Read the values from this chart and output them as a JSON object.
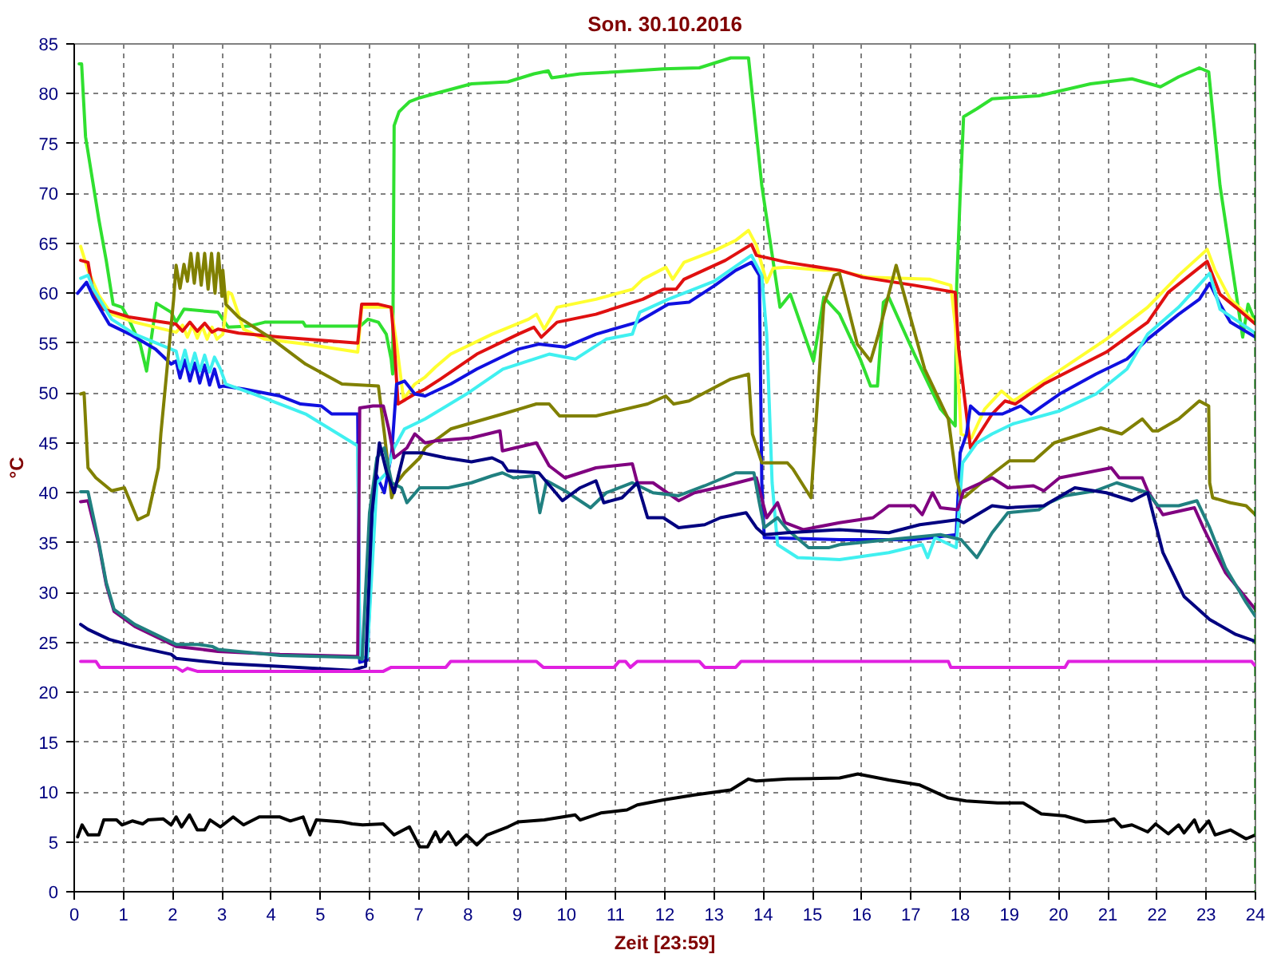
{
  "chart_data": {
    "type": "line",
    "title": "Son. 30.10.2016",
    "xlabel": "Zeit [23:59]",
    "ylabel": "°C",
    "xlim": [
      0,
      24
    ],
    "ylim": [
      0,
      85
    ],
    "xticks": [
      0,
      1,
      2,
      3,
      4,
      5,
      6,
      7,
      8,
      9,
      10,
      11,
      12,
      13,
      14,
      15,
      16,
      17,
      18,
      19,
      20,
      21,
      22,
      23,
      24
    ],
    "yticks": [
      0,
      5,
      10,
      15,
      20,
      25,
      30,
      35,
      40,
      45,
      50,
      55,
      60,
      65,
      70,
      75,
      80,
      85
    ],
    "grid": true,
    "ref_lines": [
      {
        "axis": "x",
        "value": 24,
        "color": "#006400",
        "line_style": "dashed"
      }
    ],
    "series": [
      {
        "color": "#30e030",
        "x": [
          0.1,
          0.15,
          0.23,
          0.5,
          0.65,
          0.79,
          0.97,
          1.1,
          1.34,
          1.47,
          1.67,
          1.97,
          2.07,
          2.23,
          2.92,
          3.13,
          3.55,
          3.87,
          4.65,
          4.7,
          5.81,
          5.97,
          6.18,
          6.34,
          6.44,
          6.47,
          6.5,
          6.6,
          6.81,
          7.02,
          7.39,
          8.07,
          8.81,
          9.34,
          9.63,
          9.7,
          10.28,
          11.02,
          11.97,
          12.7,
          13.34,
          13.7,
          13.97,
          14.34,
          14.55,
          15.02,
          15.23,
          15.55,
          15.97,
          16.18,
          16.32,
          16.44,
          16.55,
          17.07,
          17.6,
          17.9,
          17.93,
          18.0,
          18.07,
          18.34,
          18.65,
          19.6,
          20.65,
          21.49,
          22.07,
          22.44,
          22.86,
          23.05,
          23.28,
          23.74,
          23.85,
          24
        ],
        "values": [
          83,
          83,
          75.7,
          67.4,
          63.3,
          58.9,
          58.6,
          57.5,
          54.9,
          52.2,
          59,
          58.1,
          57.1,
          58.4,
          58.1,
          56.6,
          56.7,
          57.1,
          57.1,
          56.7,
          56.7,
          57.4,
          57.1,
          55.9,
          53.4,
          51.9,
          76.8,
          78.2,
          79.2,
          79.6,
          80.1,
          81,
          81.2,
          82,
          82.3,
          81.6,
          82,
          82.2,
          82.5,
          82.6,
          83.6,
          83.6,
          70.8,
          58.6,
          59.9,
          53.2,
          59.6,
          57.9,
          53.4,
          50.7,
          50.7,
          59.1,
          59.6,
          53.9,
          48.4,
          46.7,
          60.8,
          69.8,
          77.7,
          78.5,
          79.5,
          79.8,
          81,
          81.5,
          80.7,
          81.7,
          82.6,
          82.2,
          70.8,
          55.6,
          58.9,
          57.1
        ]
      },
      {
        "color": "#ffff30",
        "x": [
          0.13,
          0.28,
          0.5,
          0.76,
          1.23,
          2.07,
          2.2,
          2.3,
          2.4,
          2.5,
          2.6,
          2.7,
          2.8,
          2.9,
          3.02,
          3.13,
          3.2,
          3.44,
          3.87,
          4.7,
          5.76,
          5.84,
          6.44,
          6.55,
          6.69,
          6.92,
          7.13,
          7.34,
          7.65,
          8.49,
          9.23,
          9.39,
          9.55,
          9.81,
          10.6,
          11.34,
          11.55,
          12.02,
          12.16,
          12.39,
          13.02,
          13.44,
          13.7,
          13.86,
          14.07,
          14.2,
          14.49,
          15.23,
          15.5,
          16.13,
          17.39,
          17.81,
          17.9,
          18.02,
          18.23,
          18.5,
          18.84,
          19.08,
          19.91,
          20.97,
          21.81,
          22.44,
          23.02,
          23.18,
          23.49,
          24
        ],
        "values": [
          64.7,
          62.3,
          59.8,
          57.9,
          57.1,
          56.1,
          56.8,
          55.6,
          56.8,
          55.5,
          56.7,
          55.4,
          56.6,
          55.4,
          55.9,
          60.1,
          59.9,
          56.4,
          55.4,
          54.9,
          54.1,
          58.6,
          58.6,
          54.9,
          49.4,
          50.9,
          51.6,
          52.6,
          53.9,
          55.9,
          57.4,
          57.9,
          56.4,
          58.6,
          59.4,
          60.4,
          61.4,
          62.6,
          61.4,
          63.1,
          64.3,
          65.3,
          66.3,
          64.8,
          61.1,
          62.5,
          62.6,
          62.3,
          62.3,
          61.6,
          61.4,
          60.8,
          56.9,
          45.9,
          45.5,
          48.4,
          50.2,
          49.2,
          51.9,
          55.4,
          58.6,
          61.8,
          64.4,
          62.3,
          59.4,
          57.1
        ]
      },
      {
        "color": "#e01010",
        "x": [
          0.13,
          0.28,
          0.39,
          0.6,
          1.13,
          2.07,
          2.2,
          2.35,
          2.5,
          2.65,
          2.8,
          2.92,
          3.34,
          4.18,
          5.76,
          5.84,
          6.18,
          6.44,
          6.5,
          6.58,
          6.92,
          7.13,
          7.44,
          8.18,
          9.02,
          9.34,
          9.49,
          9.81,
          10.6,
          11.55,
          11.97,
          12.23,
          12.39,
          13.23,
          13.76,
          13.86,
          14.49,
          15.55,
          16.02,
          17.07,
          17.9,
          17.97,
          18.21,
          18.65,
          18.91,
          19.12,
          19.7,
          20.97,
          21.81,
          22.23,
          23.02,
          23.28,
          23.6,
          24
        ],
        "values": [
          63.3,
          63.1,
          59.9,
          58.4,
          57.6,
          56.9,
          56.2,
          57.1,
          56.2,
          57,
          56.1,
          56.4,
          56,
          55.6,
          55,
          58.9,
          58.9,
          58.6,
          55.1,
          48.9,
          49.9,
          50.4,
          51.4,
          53.9,
          55.9,
          56.6,
          55.6,
          57.1,
          57.9,
          59.4,
          60.4,
          60.4,
          61.4,
          63.3,
          64.9,
          63.8,
          63.1,
          62.3,
          61.6,
          60.8,
          60.1,
          54.4,
          44.5,
          47.9,
          49.2,
          48.9,
          50.9,
          54.1,
          57.1,
          60.1,
          63.2,
          59.9,
          58.6,
          56.9
        ]
      },
      {
        "color": "#1010e0",
        "x": [
          0.07,
          0.25,
          0.39,
          0.71,
          1.13,
          1.65,
          1.97,
          2.07,
          2.15,
          2.25,
          2.35,
          2.45,
          2.55,
          2.65,
          2.75,
          2.85,
          2.95,
          3.02,
          3.44,
          4.18,
          4.6,
          5.02,
          5.23,
          5.76,
          5.8,
          5.95,
          6.12,
          6.3,
          6.45,
          6.55,
          6.71,
          6.92,
          7.13,
          7.65,
          8.18,
          9.02,
          9.44,
          9.97,
          10.6,
          11.44,
          12.07,
          12.49,
          13.02,
          13.44,
          13.76,
          13.92,
          13.97,
          14.02,
          15.55,
          17.07,
          17.92,
          18.0,
          18.13,
          18.21,
          18.39,
          18.86,
          19.23,
          19.44,
          20.02,
          20.76,
          21.39,
          21.81,
          22.44,
          22.86,
          23.07,
          23.28,
          23.49,
          24
        ],
        "values": [
          60,
          61.1,
          59.6,
          56.9,
          55.9,
          54.4,
          52.9,
          53.2,
          51.5,
          53.3,
          51.2,
          53,
          51,
          52.8,
          50.8,
          52.4,
          50.6,
          50.7,
          50.4,
          49.7,
          48.9,
          48.7,
          47.9,
          47.9,
          23,
          23.2,
          42,
          40,
          44,
          50.9,
          51.2,
          49.9,
          49.7,
          50.9,
          52.4,
          54.4,
          54.9,
          54.6,
          55.9,
          57.1,
          58.9,
          59.1,
          60.8,
          62.3,
          63.1,
          61.8,
          41,
          35.5,
          35.3,
          35.3,
          35.8,
          44,
          45.9,
          48.7,
          47.9,
          47.9,
          48.7,
          47.9,
          49.9,
          51.9,
          53.4,
          55.4,
          57.9,
          59.4,
          61,
          58.9,
          57.1,
          55.6
        ]
      },
      {
        "color": "#40f0f0",
        "x": [
          0.13,
          0.28,
          0.39,
          0.76,
          1.23,
          1.97,
          2.07,
          2.15,
          2.25,
          2.35,
          2.45,
          2.55,
          2.65,
          2.75,
          2.85,
          2.97,
          3.08,
          3.65,
          4.7,
          5.76,
          5.8,
          5.95,
          6.15,
          6.35,
          6.5,
          6.71,
          7.13,
          7.97,
          8.71,
          9.65,
          10.18,
          10.81,
          11.34,
          11.49,
          12.07,
          13.0,
          13.76,
          13.97,
          14.07,
          14.18,
          14.29,
          14.7,
          15.55,
          16.55,
          17.23,
          17.34,
          17.49,
          17.92,
          18.05,
          18.34,
          18.65,
          19.07,
          20.02,
          20.76,
          21.39,
          21.81,
          22.44,
          23.07,
          23.28,
          24
        ],
        "values": [
          61.5,
          61.8,
          60.4,
          57.4,
          55.9,
          54.4,
          54.2,
          52.5,
          54.3,
          52.3,
          54,
          52.2,
          53.8,
          52.1,
          53.6,
          52.4,
          50.9,
          49.9,
          47.9,
          44.7,
          23.5,
          23.5,
          41,
          42,
          44.5,
          46.4,
          47.4,
          49.9,
          52.4,
          53.9,
          53.4,
          55.4,
          55.9,
          58.1,
          59.4,
          61.2,
          63.8,
          61.8,
          55.9,
          41,
          34.8,
          33.5,
          33.3,
          34,
          34.8,
          33.5,
          35.5,
          34.5,
          43,
          45,
          45.9,
          46.9,
          48.2,
          49.9,
          52.4,
          55.9,
          58.6,
          62,
          58.4,
          56
        ]
      },
      {
        "color": "#808000",
        "x": [
          0.13,
          0.2,
          0.28,
          0.44,
          0.76,
          1.02,
          1.29,
          1.5,
          1.71,
          1.76,
          2.02,
          2.07,
          2.15,
          2.23,
          2.3,
          2.37,
          2.44,
          2.51,
          2.58,
          2.65,
          2.72,
          2.79,
          2.86,
          2.93,
          3.0,
          3.02,
          3.08,
          3.34,
          3.97,
          4.7,
          5.44,
          6.18,
          6.3,
          6.45,
          6.55,
          6.71,
          7.02,
          7.13,
          7.65,
          8.71,
          9.39,
          9.65,
          9.86,
          10.6,
          11.65,
          12.02,
          12.18,
          12.49,
          13.34,
          13.7,
          13.78,
          13.97,
          14.49,
          14.6,
          14.97,
          15.23,
          15.44,
          15.55,
          15.91,
          16.18,
          16.34,
          16.7,
          16.86,
          17.28,
          17.76,
          17.92,
          18.02,
          18.1,
          18.55,
          19.0,
          19.5,
          19.91,
          20.86,
          21.28,
          21.7,
          21.91,
          22.02,
          22.44,
          22.86,
          23.05,
          23.07,
          23.13,
          23.49,
          23.81,
          24
        ],
        "values": [
          49.9,
          50,
          42.5,
          41.5,
          40.2,
          40.5,
          37.3,
          37.8,
          42.5,
          45.9,
          59.4,
          62.8,
          60.5,
          62.9,
          61.2,
          64,
          61,
          64,
          60.8,
          64,
          60.4,
          64,
          60,
          64,
          59.7,
          62.3,
          58.9,
          57.6,
          55.6,
          52.9,
          50.9,
          50.7,
          46,
          39.5,
          41,
          42,
          43.5,
          44.5,
          46.4,
          47.9,
          48.9,
          48.9,
          47.7,
          47.7,
          48.9,
          49.7,
          48.9,
          49.2,
          51.4,
          51.9,
          45.9,
          43,
          43,
          42.4,
          39.5,
          58.9,
          61.8,
          62,
          54.9,
          53.2,
          55.9,
          62.8,
          59.9,
          52.4,
          47.4,
          41.5,
          39.5,
          39.6,
          41.5,
          43.2,
          43.2,
          45,
          46.5,
          45.9,
          47.4,
          46.2,
          46.2,
          47.4,
          49.2,
          48.7,
          41,
          39.5,
          39,
          38.7,
          37.8
        ]
      },
      {
        "color": "#800080",
        "x": [
          0.13,
          0.28,
          0.5,
          0.65,
          0.81,
          1.23,
          1.65,
          2.07,
          2.92,
          4.18,
          5.76,
          5.8,
          6.07,
          6.28,
          6.39,
          6.5,
          6.76,
          6.92,
          7.13,
          7.34,
          8.07,
          8.65,
          8.7,
          9.39,
          9.65,
          9.97,
          10.6,
          11.34,
          11.44,
          11.76,
          12.28,
          12.6,
          13.23,
          13.86,
          14.07,
          14.29,
          14.44,
          14.81,
          15.55,
          16.23,
          16.55,
          17.07,
          17.23,
          17.44,
          17.6,
          17.95,
          18.07,
          18.65,
          18.97,
          19.49,
          19.7,
          20.02,
          20.55,
          21.07,
          21.23,
          21.7,
          21.81,
          22.12,
          22.76,
          22.96,
          23.39,
          24
        ],
        "values": [
          39.1,
          39.2,
          34.8,
          30.8,
          28.1,
          26.6,
          25.6,
          24.6,
          24.1,
          23.8,
          23.6,
          48.5,
          48.7,
          48.7,
          46.4,
          43.5,
          44.5,
          45.9,
          45,
          45.2,
          45.5,
          46.2,
          44.2,
          45,
          42.7,
          41.5,
          42.5,
          42.9,
          41,
          41,
          39.2,
          40,
          40.7,
          41.5,
          37.5,
          39,
          37,
          36.3,
          37,
          37.5,
          38.7,
          38.7,
          37.8,
          40,
          38.5,
          38.3,
          40.2,
          41.5,
          40.5,
          40.7,
          40.2,
          41.5,
          42,
          42.5,
          41.5,
          41.5,
          40.2,
          37.8,
          38.5,
          36.3,
          32,
          28.3
        ]
      },
      {
        "color": "#208080",
        "x": [
          0.13,
          0.28,
          0.5,
          0.65,
          0.81,
          1.23,
          1.65,
          2.07,
          2.5,
          2.8,
          2.92,
          4.18,
          5.76,
          5.85,
          6.0,
          6.15,
          6.3,
          6.45,
          6.65,
          6.76,
          7.02,
          7.6,
          8.07,
          8.49,
          8.7,
          8.92,
          9.34,
          9.46,
          9.6,
          9.97,
          10.49,
          10.81,
          11.34,
          11.76,
          12.28,
          12.81,
          13.44,
          13.81,
          13.92,
          14.02,
          14.29,
          14.49,
          14.92,
          15.34,
          15.55,
          16.55,
          17.6,
          18.02,
          18.34,
          18.65,
          18.97,
          19.6,
          19.81,
          20.13,
          20.76,
          21.18,
          21.81,
          22.02,
          22.44,
          22.81,
          23.07,
          23.39,
          23.81,
          24
        ],
        "values": [
          40.1,
          40.1,
          35,
          31,
          28.3,
          26.8,
          25.8,
          24.8,
          24.8,
          24.6,
          24.3,
          23.7,
          23.5,
          23.3,
          38,
          43.5,
          44.5,
          41,
          40.5,
          39,
          40.5,
          40.5,
          41,
          41.7,
          42,
          41.5,
          41.7,
          38,
          41.2,
          40.2,
          38.5,
          40,
          41,
          40,
          39.7,
          40.7,
          42,
          42,
          39,
          36.5,
          37.5,
          36.3,
          34.5,
          34.5,
          34.8,
          35.3,
          35.8,
          35.3,
          33.5,
          36,
          38,
          38.3,
          39,
          39.7,
          40.2,
          41,
          40,
          38.7,
          38.7,
          39.2,
          36.5,
          32.5,
          29,
          27.6
        ]
      },
      {
        "color": "#000080",
        "x": [
          0.13,
          0.28,
          0.71,
          1.23,
          1.97,
          2.07,
          3.02,
          4.18,
          5.65,
          5.92,
          6.05,
          6.2,
          6.35,
          6.5,
          6.7,
          7.07,
          7.55,
          8.07,
          8.49,
          8.7,
          8.81,
          9.44,
          9.92,
          10.28,
          10.6,
          10.76,
          11.13,
          11.44,
          11.65,
          11.97,
          12.28,
          12.81,
          13.13,
          13.65,
          13.86,
          14.02,
          14.49,
          15.55,
          16.55,
          17.18,
          17.95,
          18.07,
          18.65,
          18.97,
          19.7,
          20.33,
          20.97,
          21.49,
          21.81,
          22.12,
          22.55,
          23.07,
          23.6,
          24
        ],
        "values": [
          26.8,
          26.3,
          25.3,
          24.6,
          23.8,
          23.4,
          22.9,
          22.6,
          22.2,
          22.6,
          38,
          45,
          42,
          40,
          44,
          44,
          43.5,
          43.1,
          43.5,
          43,
          42.2,
          42,
          39.2,
          40.5,
          41.2,
          39,
          39.5,
          41,
          37.5,
          37.5,
          36.5,
          36.8,
          37.5,
          38,
          36.5,
          35.8,
          36,
          36.3,
          36,
          36.8,
          37.3,
          37,
          38.7,
          38.5,
          38.7,
          40.5,
          40,
          39.2,
          40,
          34,
          29.6,
          27.3,
          25.8,
          25.1
        ]
      },
      {
        "color": "#e020e0",
        "x": [
          0.13,
          0.44,
          0.52,
          2.07,
          2.2,
          2.3,
          2.5,
          3.02,
          6.28,
          6.44,
          7.55,
          7.65,
          9.39,
          9.53,
          10.97,
          11.07,
          11.2,
          11.3,
          11.44,
          12.7,
          12.81,
          13.44,
          13.55,
          17.76,
          17.81,
          20.13,
          20.2,
          23.92,
          24
        ],
        "values": [
          23.1,
          23.1,
          22.5,
          22.5,
          22.1,
          22.4,
          22.1,
          22.1,
          22.1,
          22.5,
          22.5,
          23.1,
          23.1,
          22.5,
          22.5,
          23.1,
          23.1,
          22.5,
          23.1,
          23.1,
          22.5,
          22.5,
          23.1,
          23.1,
          22.5,
          22.5,
          23.1,
          23.1,
          22.6
        ]
      },
      {
        "color": "#000000",
        "x": [
          0.07,
          0.16,
          0.28,
          0.5,
          0.6,
          0.86,
          0.97,
          1.18,
          1.39,
          1.5,
          1.81,
          1.97,
          2.07,
          2.18,
          2.34,
          2.5,
          2.65,
          2.76,
          2.97,
          3.23,
          3.44,
          3.76,
          4.18,
          4.39,
          4.65,
          4.79,
          4.92,
          5.44,
          5.65,
          5.86,
          6.28,
          6.5,
          6.81,
          7.02,
          7.18,
          7.34,
          7.44,
          7.6,
          7.76,
          7.97,
          8.18,
          8.39,
          8.81,
          9.02,
          9.55,
          10.18,
          10.28,
          10.7,
          11.23,
          11.44,
          11.97,
          12.6,
          13.34,
          13.7,
          13.86,
          14.49,
          15.55,
          15.92,
          16.13,
          16.55,
          17.18,
          17.76,
          18.12,
          18.76,
          19.28,
          19.65,
          20.13,
          20.55,
          20.97,
          21.13,
          21.28,
          21.49,
          21.81,
          21.97,
          22.23,
          22.44,
          22.55,
          22.76,
          22.86,
          23.05,
          23.18,
          23.49,
          23.81,
          24
        ],
        "values": [
          5.5,
          6.7,
          5.7,
          5.7,
          7.2,
          7.2,
          6.7,
          7.1,
          6.8,
          7.2,
          7.3,
          6.7,
          7.5,
          6.5,
          7.7,
          6.2,
          6.2,
          7.2,
          6.5,
          7.5,
          6.7,
          7.5,
          7.5,
          7.1,
          7.5,
          5.7,
          7.2,
          7,
          6.8,
          6.7,
          6.8,
          5.7,
          6.5,
          4.5,
          4.5,
          6,
          5,
          6,
          4.7,
          5.7,
          4.7,
          5.7,
          6.5,
          7,
          7.2,
          7.7,
          7.2,
          7.9,
          8.2,
          8.7,
          9.2,
          9.7,
          10.2,
          11.3,
          11.1,
          11.3,
          11.4,
          11.8,
          11.6,
          11.2,
          10.7,
          9.4,
          9.1,
          8.9,
          8.9,
          7.8,
          7.6,
          7,
          7.1,
          7.3,
          6.5,
          6.7,
          6,
          6.8,
          5.8,
          6.7,
          5.9,
          7.2,
          6,
          7.1,
          5.7,
          6.2,
          5.3,
          5.7
        ]
      }
    ]
  }
}
